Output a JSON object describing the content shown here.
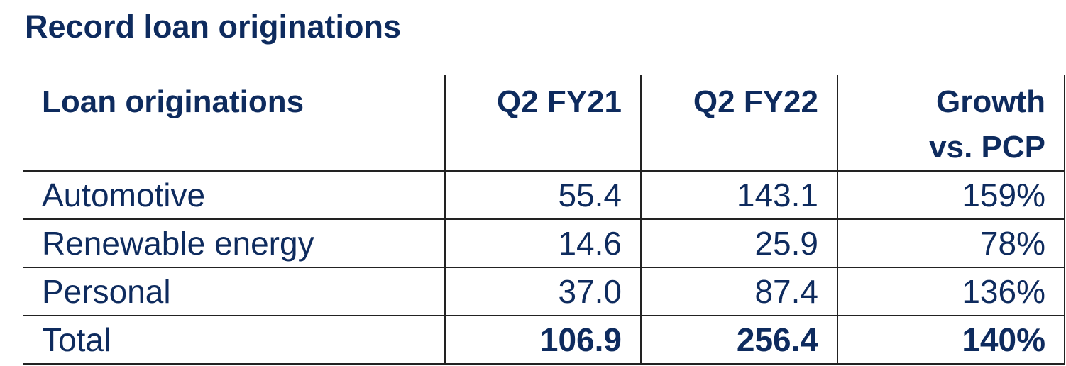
{
  "header": {
    "title": "Record loan originations"
  },
  "table": {
    "columns": [
      "Loan originations",
      "Q2 FY21",
      "Q2 FY22",
      "Growth vs. PCP"
    ],
    "rows": [
      [
        "Automotive",
        "55.4",
        "143.1",
        "159%"
      ],
      [
        "Renewable energy",
        "14.6",
        "25.9",
        "78%"
      ],
      [
        "Personal",
        "37.0",
        "87.4",
        "136%"
      ],
      [
        "Total",
        "106.9",
        "256.4",
        "140%"
      ]
    ]
  }
}
